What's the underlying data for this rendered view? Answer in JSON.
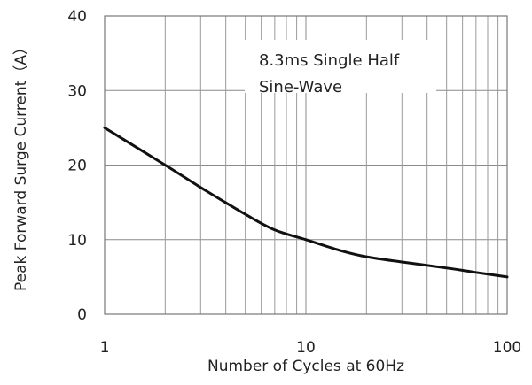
{
  "chart_data": {
    "type": "line",
    "title": "",
    "xlabel": "Number of Cycles at 60Hz",
    "ylabel": "Peak Forward Surge Current（A）",
    "x_scale": "log",
    "xlim": [
      1,
      100
    ],
    "ylim": [
      0,
      40
    ],
    "x_ticks": [
      1,
      10,
      100
    ],
    "x_tick_labels": [
      "1",
      "10",
      "100"
    ],
    "y_ticks": [
      0,
      10,
      20,
      30,
      40
    ],
    "y_tick_labels": [
      "0",
      "10",
      "20",
      "30",
      "40"
    ],
    "grid": true,
    "annotation": [
      "8.3ms Single Half",
      "Sine-Wave"
    ],
    "series": [
      {
        "x": [
          1,
          2,
          3,
          5,
          7,
          10,
          15,
          20,
          30,
          50,
          70,
          100
        ],
        "y": [
          25,
          20,
          17,
          13.4,
          11.3,
          10,
          8.5,
          7.7,
          7,
          6.2,
          5.6,
          5
        ]
      }
    ]
  }
}
